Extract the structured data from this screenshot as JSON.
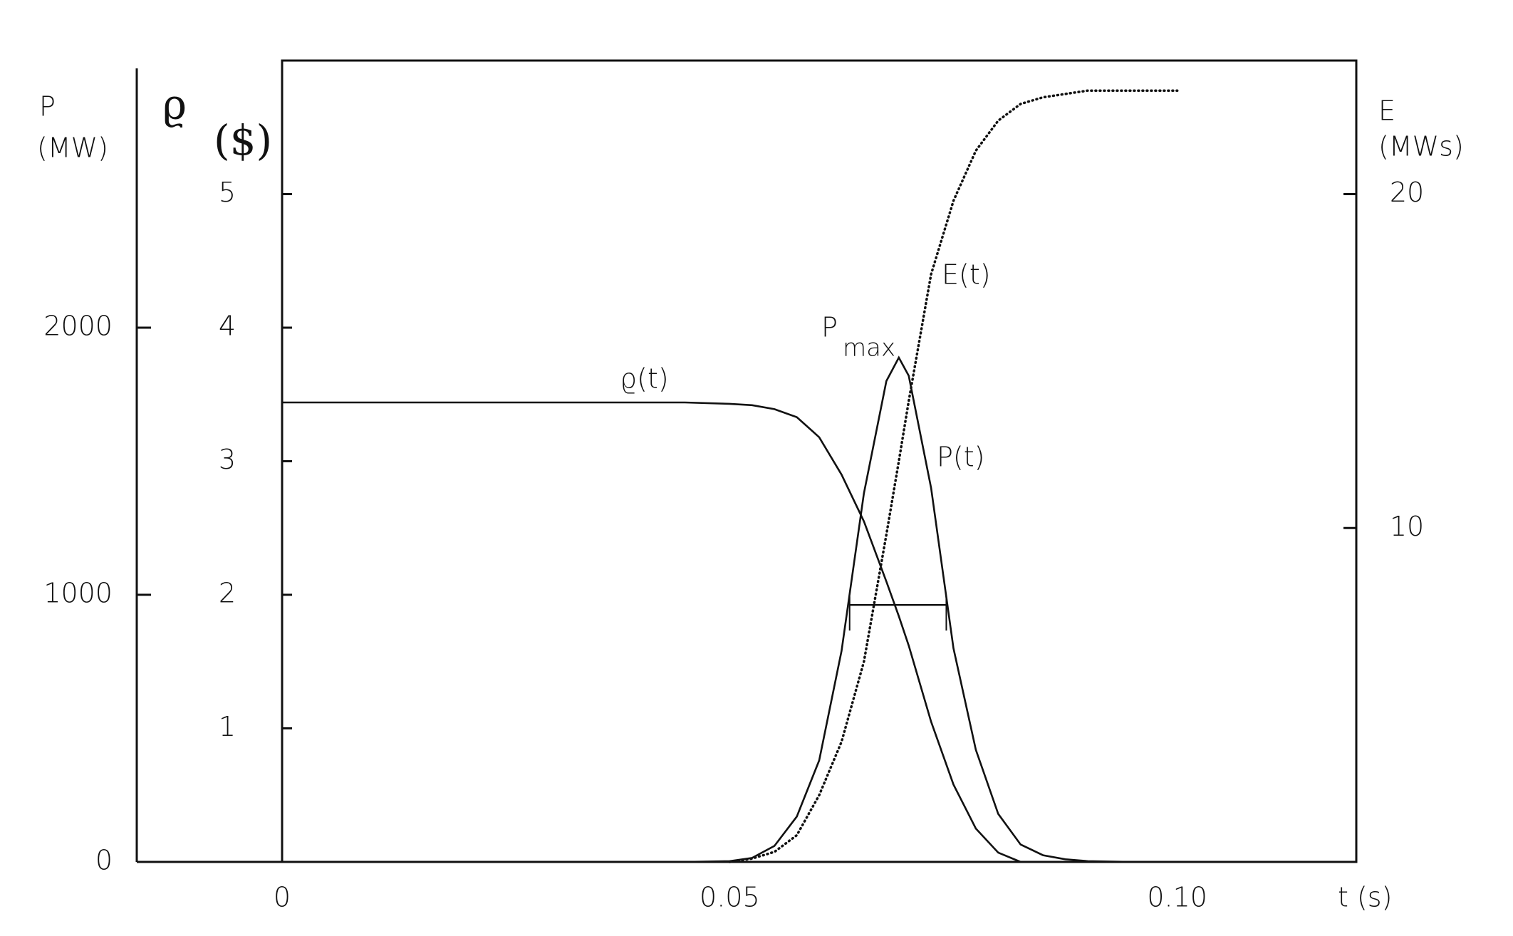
{
  "chart_data": {
    "type": "line",
    "x_label": "t (s)",
    "x": [
      0,
      0.02,
      0.04,
      0.045,
      0.05,
      0.0525,
      0.055,
      0.0575,
      0.06,
      0.0625,
      0.065,
      0.0675,
      0.0689,
      0.07,
      0.0725,
      0.075,
      0.0775,
      0.08,
      0.0825,
      0.085,
      0.0875,
      0.09,
      0.095,
      0.1
    ],
    "xlim": [
      0,
      0.12
    ],
    "xticks": [
      0,
      0.05,
      {
        "value": 0.1,
        "label": "0.10"
      }
    ],
    "ylabel": "P",
    "yunit": "(MW)",
    "ylim": [
      0,
      3000
    ],
    "yticks": [
      0,
      1000,
      2000
    ],
    "y2label": "ϱ",
    "y2unit": "($)",
    "y2lim": [
      0,
      6
    ],
    "y2ticks": [
      1,
      2,
      3,
      4,
      5
    ],
    "y3label": "E",
    "y3unit": "(MWs)",
    "y3lim": [
      0,
      24
    ],
    "y3ticks": [
      10,
      20
    ],
    "series": [
      {
        "name": "P(t)",
        "color": "#111111",
        "axis": "y",
        "style": "solid",
        "values": [
          0,
          0,
          0,
          0,
          3,
          15,
          60,
          170,
          380,
          790,
          1380,
          1800,
          1888,
          1820,
          1400,
          800,
          420,
          180,
          65,
          25,
          10,
          3,
          0,
          0
        ]
      },
      {
        "name": "ϱ(t)",
        "color": "#111111",
        "axis": "y2",
        "style": "solid",
        "values": [
          3.44,
          3.44,
          3.44,
          3.44,
          3.43,
          3.42,
          3.39,
          3.33,
          3.18,
          2.9,
          2.55,
          2.1,
          1.84,
          1.62,
          1.05,
          0.58,
          0.25,
          0.07,
          0,
          null,
          null,
          null,
          null,
          null
        ]
      },
      {
        "name": "E(t)",
        "color": "#111111",
        "axis": "y3",
        "style": "dotted",
        "values": [
          null,
          null,
          null,
          null,
          0,
          0.1,
          0.3,
          0.8,
          2.0,
          3.6,
          6.0,
          9.8,
          12.0,
          13.8,
          17.6,
          19.8,
          21.3,
          22.2,
          22.7,
          22.9,
          23.0,
          23.1,
          23.1,
          23.1
        ]
      }
    ],
    "pmax": {
      "main": "P",
      "sub": "max"
    },
    "fwhm": {
      "t_start": 0.0634,
      "t_end": 0.0742,
      "P": 962
    }
  }
}
